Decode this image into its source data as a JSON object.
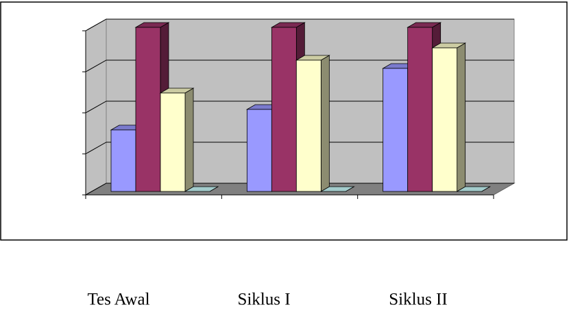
{
  "chart_data": {
    "type": "bar3d",
    "categories": [
      "Tes Awal",
      "Siklus I",
      "Siklus II"
    ],
    "series": [
      {
        "color": "#9999ff",
        "values": [
          1.5,
          2,
          3
        ]
      },
      {
        "color": "#993366",
        "values": [
          4,
          4,
          4
        ]
      },
      {
        "color": "#ffffcc",
        "values": [
          2.4,
          3.2,
          3.5
        ]
      },
      {
        "color": "#ccffff",
        "values": [
          0,
          0,
          0
        ]
      }
    ],
    "ylim": [
      0,
      4
    ],
    "yticks": [
      0,
      1,
      2,
      3,
      4
    ],
    "grid": true
  }
}
